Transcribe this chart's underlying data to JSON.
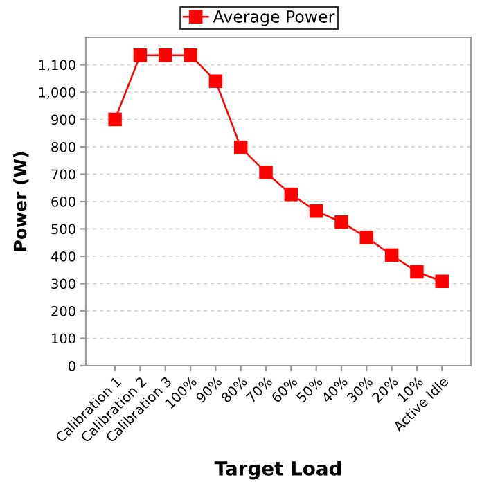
{
  "chart_data": {
    "type": "line",
    "xlabel": "Target Load",
    "ylabel": "Power (W)",
    "categories": [
      "Calibration 1",
      "Calibration 2",
      "Calibration 3",
      "100%",
      "90%",
      "80%",
      "70%",
      "60%",
      "50%",
      "40%",
      "30%",
      "20%",
      "10%",
      "Active Idle"
    ],
    "series": [
      {
        "name": "Average Power",
        "color": "#ff0000",
        "values": [
          900,
          1135,
          1135,
          1135,
          1040,
          798,
          706,
          626,
          565,
          525,
          469,
          404,
          343,
          308
        ]
      }
    ],
    "ylim": [
      0,
      1200
    ],
    "yticks": [
      0,
      100,
      200,
      300,
      400,
      500,
      600,
      700,
      800,
      900,
      {
        "value": 1000,
        "label": "1,000"
      },
      {
        "value": 1100,
        "label": "1,100"
      }
    ],
    "grid": "y",
    "legend": "top",
    "marker": "square",
    "line_style": "solid"
  }
}
